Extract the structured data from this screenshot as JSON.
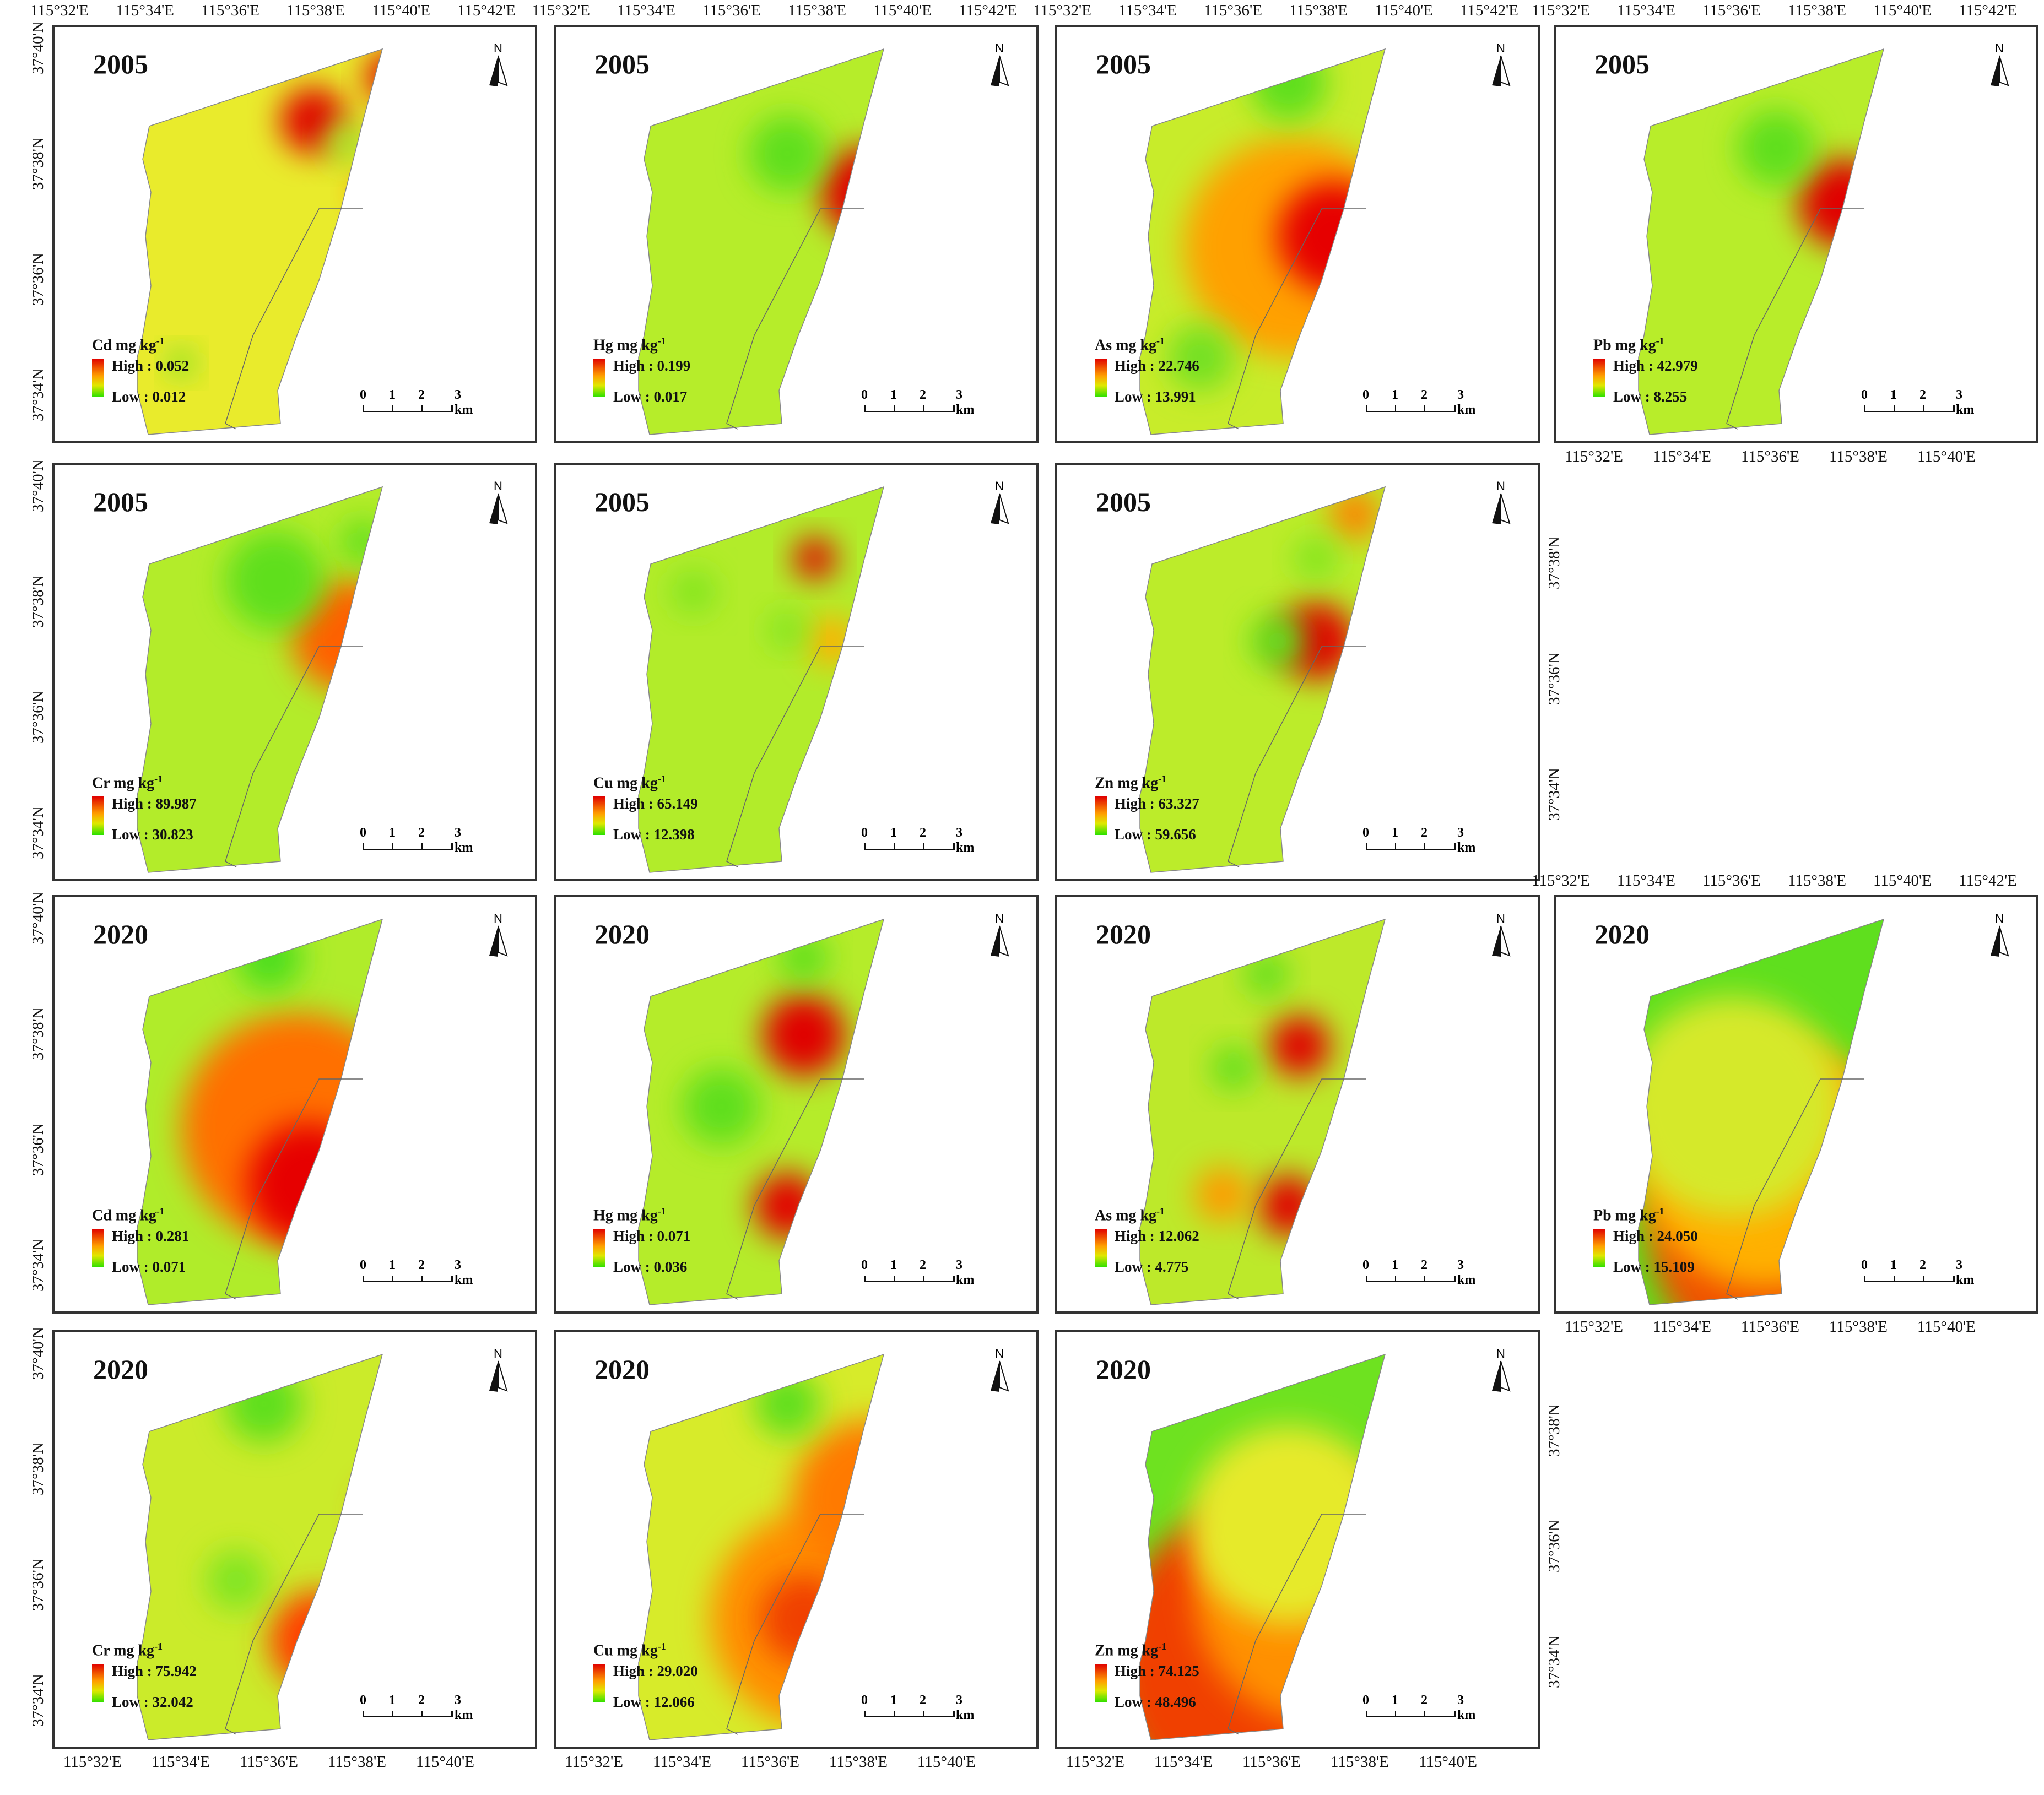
{
  "north_label": "N",
  "units": "mg kg",
  "unit_exponent": "-1",
  "scale_bar": {
    "labels": [
      "0",
      "1",
      "2",
      "3 km"
    ]
  },
  "lon_ticks": [
    "115°32'E",
    "115°34'E",
    "115°36'E",
    "115°38'E",
    "115°40'E",
    "115°42'E"
  ],
  "lat_ticks": [
    "37°34'N",
    "37°36'N",
    "37°38'N",
    "37°40'N"
  ],
  "legend_high_prefix": "High :",
  "legend_low_prefix": "Low :",
  "panels": [
    {
      "year": "2005",
      "element": "Cd",
      "high": "0.052",
      "low": "0.012"
    },
    {
      "year": "2005",
      "element": "Hg",
      "high": "0.199",
      "low": "0.017"
    },
    {
      "year": "2005",
      "element": "As",
      "high": "22.746",
      "low": "13.991"
    },
    {
      "year": "2005",
      "element": "Pb",
      "high": "42.979",
      "low": "8.255"
    },
    {
      "year": "2005",
      "element": "Cr",
      "high": "89.987",
      "low": "30.823"
    },
    {
      "year": "2005",
      "element": "Cu",
      "high": "65.149",
      "low": "12.398"
    },
    {
      "year": "2005",
      "element": "Zn",
      "high": "63.327",
      "low": "59.656"
    },
    {
      "year": "2020",
      "element": "Cd",
      "high": "0.281",
      "low": "0.071"
    },
    {
      "year": "2020",
      "element": "Hg",
      "high": "0.071",
      "low": "0.036"
    },
    {
      "year": "2020",
      "element": "As",
      "high": "12.062",
      "low": "4.775"
    },
    {
      "year": "2020",
      "element": "Pb",
      "high": "24.050",
      "low": "15.109"
    },
    {
      "year": "2020",
      "element": "Cr",
      "high": "75.942",
      "low": "32.042"
    },
    {
      "year": "2020",
      "element": "Cu",
      "high": "29.020",
      "low": "12.066"
    },
    {
      "year": "2020",
      "element": "Zn",
      "high": "74.125",
      "low": "48.496"
    }
  ],
  "colors": {
    "low": "#2ce000",
    "mid": "#dfe800",
    "high_mid": "#ffa000",
    "high": "#e00000",
    "base_2005": "#b9ee2a",
    "base_cd2005": "#ecec2a"
  }
}
